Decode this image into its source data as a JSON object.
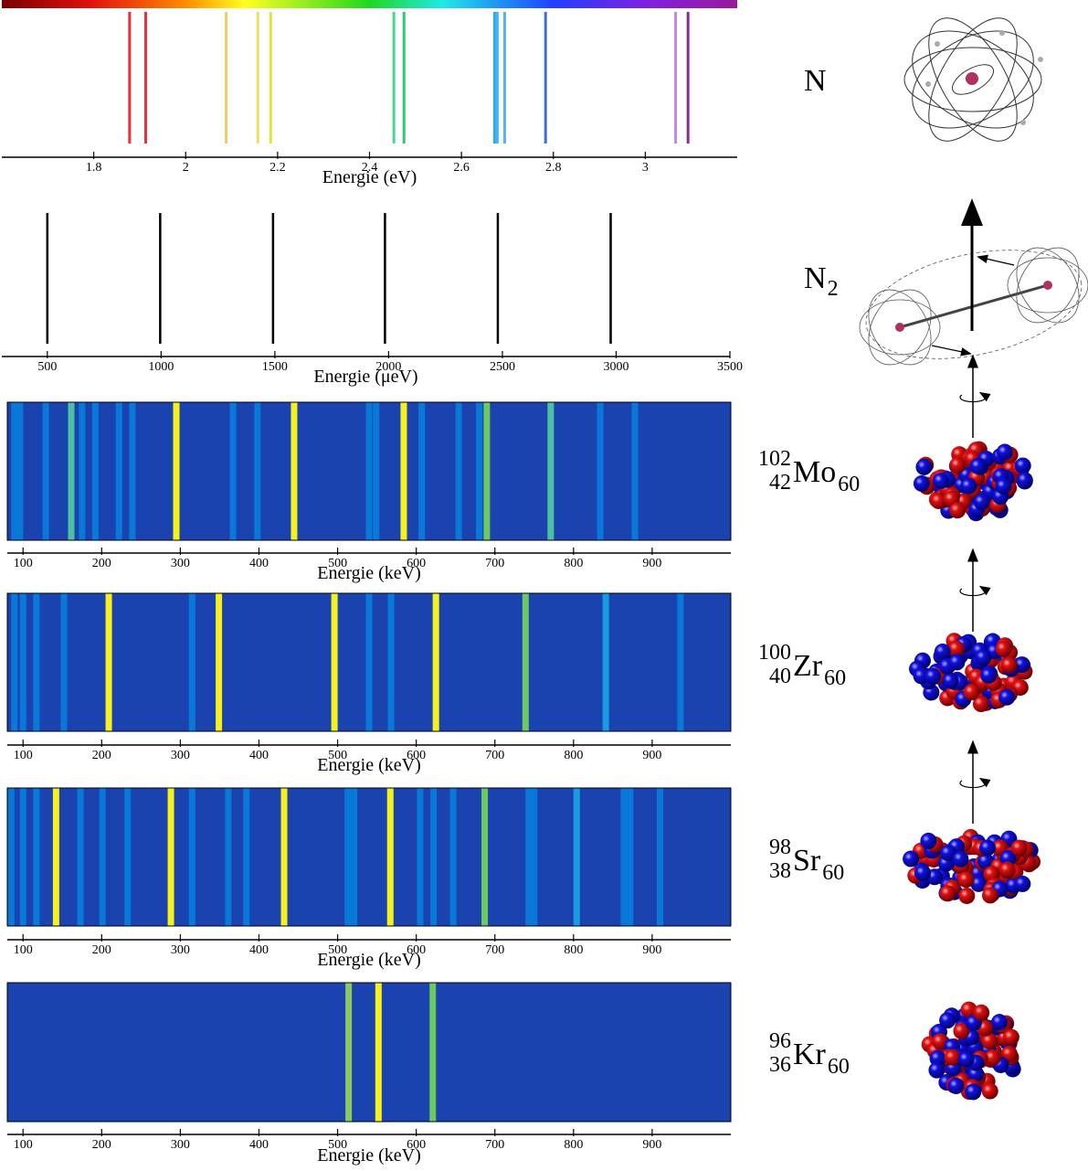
{
  "chart_data": [
    {
      "type": "spectrum",
      "label": {
        "symbol": "N"
      },
      "xlabel": "Energie (eV)",
      "xlim": [
        1.6,
        3.2
      ],
      "xticks": [
        1.8,
        2,
        2.2,
        2.4,
        2.6,
        2.8,
        3
      ],
      "values": [
        1.878,
        1.913,
        2.088,
        2.157,
        2.185,
        2.453,
        2.475,
        2.672,
        2.678,
        2.694,
        2.783,
        3.066,
        3.093
      ],
      "colors": [
        "#e8303a",
        "#e8303a",
        "#f0cc66",
        "#e8e066",
        "#d8e840",
        "#44d890",
        "#30c870",
        "#2aa8e8",
        "#44b4f0",
        "#55b4f0",
        "#3a70d0",
        "#c488dc",
        "#8a2a9a"
      ]
    },
    {
      "type": "spectrum",
      "label": {
        "symbol": "N",
        "sub": "2"
      },
      "xlabel": "Energie (μeV)",
      "xlim": [
        300,
        3500
      ],
      "xticks": [
        500,
        1000,
        1500,
        2000,
        2500,
        3000,
        3500
      ],
      "values": [
        500,
        996,
        1492,
        1984,
        2480,
        2976
      ],
      "color": "#000000"
    },
    {
      "type": "band_spectrum",
      "label": {
        "mass": "102",
        "Z": "42",
        "symbol": "Mo",
        "N": "60"
      },
      "xlabel": "Energie (keV)",
      "xlim": [
        80,
        1000
      ],
      "xticks": [
        100,
        200,
        300,
        400,
        500,
        600,
        700,
        800,
        900
      ],
      "background": "#1a43b0",
      "values": [
        294.9,
        444.7,
        584.1,
        161.3,
        689.7,
        771.0,
        89,
        96,
        129,
        175,
        192,
        222,
        239,
        367,
        398,
        540,
        549,
        607,
        654,
        680,
        834,
        878
      ],
      "colors": [
        "#f5f01e",
        "#f5f01e",
        "#f5f01e",
        "#4cc0a0",
        "#6cc860",
        "#4cc0a0",
        "#0a78d8",
        "#0a78d8",
        "#0a78d8",
        "#0a78d8",
        "#0a78d8",
        "#0a78d8",
        "#0a78d8",
        "#0a78d8",
        "#0a78d8",
        "#0a78d8",
        "#0a78d8",
        "#0a78d8",
        "#0a78d8",
        "#0a78d8",
        "#0a78d8",
        "#0a78d8"
      ]
    },
    {
      "type": "band_spectrum",
      "label": {
        "mass": "100",
        "Z": "40",
        "symbol": "Zr",
        "N": "60"
      },
      "xlabel": "Energie (keV)",
      "xlim": [
        80,
        1000
      ],
      "xticks": [
        100,
        200,
        300,
        400,
        500,
        600,
        700,
        800,
        900
      ],
      "background": "#1a43b0",
      "values": [
        209,
        349,
        496,
        625,
        739,
        841,
        89,
        100,
        117,
        152,
        315,
        540,
        568,
        936
      ],
      "colors": [
        "#f5f01e",
        "#f5f01e",
        "#f5f01e",
        "#f5f01e",
        "#6cc860",
        "#1a9ae0",
        "#0a78d8",
        "#0a78d8",
        "#0a78d8",
        "#0a78d8",
        "#0a78d8",
        "#0a78d8",
        "#0a78d8",
        "#0a78d8"
      ]
    },
    {
      "type": "band_spectrum",
      "label": {
        "mass": "98",
        "Z": "38",
        "symbol": "Sr",
        "N": "60"
      },
      "xlabel": "Energie (keV)",
      "xlim": [
        80,
        1000
      ],
      "xticks": [
        100,
        200,
        300,
        400,
        500,
        600,
        700,
        800,
        900
      ],
      "background": "#1a43b0",
      "values": [
        142,
        288,
        432,
        567,
        687,
        804,
        85,
        100,
        117,
        173,
        201,
        233,
        315,
        361,
        384,
        513,
        521,
        605,
        622,
        647,
        743,
        750,
        864,
        872,
        910
      ],
      "colors": [
        "#f5f01e",
        "#f5f01e",
        "#f5f01e",
        "#f5f01e",
        "#6cc860",
        "#1a9ae0",
        "#0a78d8",
        "#0a78d8",
        "#0a78d8",
        "#0a78d8",
        "#0a78d8",
        "#0a78d8",
        "#0a78d8",
        "#0a78d8",
        "#0a78d8",
        "#0a78d8",
        "#0a78d8",
        "#0a78d8",
        "#0a78d8",
        "#0a78d8",
        "#0a78d8",
        "#0a78d8",
        "#0a78d8",
        "#0a78d8",
        "#0a78d8"
      ]
    },
    {
      "type": "band_spectrum",
      "label": {
        "mass": "96",
        "Z": "36",
        "symbol": "Kr",
        "N": "60"
      },
      "xlabel": "Energie (keV)",
      "xlim": [
        80,
        1000
      ],
      "xticks": [
        100,
        200,
        300,
        400,
        500,
        600,
        700,
        800,
        900
      ],
      "background": "#1a43b0",
      "values": [
        514,
        552,
        621
      ],
      "colors": [
        "#8cc860",
        "#f5f01e",
        "#6cc860"
      ]
    }
  ]
}
